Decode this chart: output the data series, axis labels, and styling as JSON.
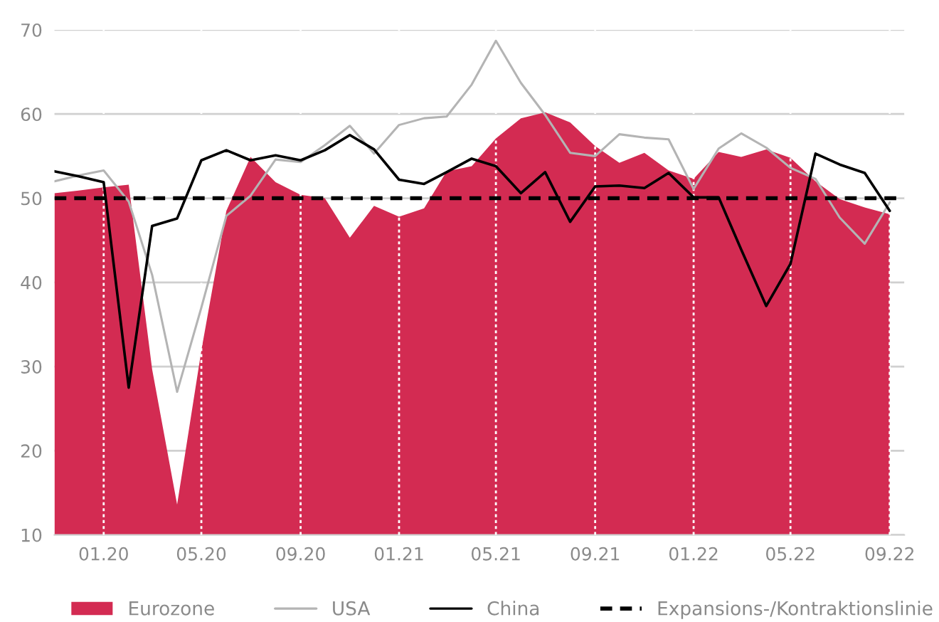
{
  "chart_data": {
    "type": "area",
    "x": [
      "2019-11",
      "2019-12",
      "2020-01",
      "2020-02",
      "2020-03",
      "2020-04",
      "2020-05",
      "2020-06",
      "2020-07",
      "2020-08",
      "2020-09",
      "2020-10",
      "2020-11",
      "2020-12",
      "2021-01",
      "2021-02",
      "2021-03",
      "2021-04",
      "2021-05",
      "2021-06",
      "2021-07",
      "2021-08",
      "2021-09",
      "2021-10",
      "2021-11",
      "2021-12",
      "2022-01",
      "2022-02",
      "2022-03",
      "2022-04",
      "2022-05",
      "2022-06",
      "2022-07",
      "2022-08",
      "2022-09"
    ],
    "series": [
      {
        "name": "Eurozone",
        "color": "#d32b52",
        "values": [
          50.6,
          50.9,
          51.3,
          51.6,
          29.7,
          13.6,
          31.9,
          48.5,
          54.9,
          51.9,
          50.4,
          50.0,
          45.3,
          49.1,
          47.8,
          48.8,
          53.2,
          53.8,
          57.1,
          59.5,
          60.2,
          59.0,
          56.2,
          54.2,
          55.4,
          53.3,
          52.3,
          55.5,
          54.9,
          55.8,
          54.8,
          52.0,
          49.9,
          48.9,
          48.1
        ]
      },
      {
        "name": "USA",
        "type": "line",
        "color": "#b4b4b4",
        "values": [
          52.0,
          52.7,
          53.3,
          49.6,
          40.9,
          27.0,
          37.0,
          47.9,
          50.3,
          54.6,
          54.3,
          56.3,
          58.6,
          55.3,
          58.7,
          59.5,
          59.7,
          63.5,
          68.7,
          63.7,
          59.9,
          55.4,
          55.0,
          57.6,
          57.2,
          57.0,
          51.1,
          55.9,
          57.7,
          56.0,
          53.6,
          52.3,
          47.7,
          44.6,
          49.5
        ]
      },
      {
        "name": "China",
        "type": "line",
        "color": "#000000",
        "values": [
          53.2,
          52.6,
          51.9,
          27.5,
          46.7,
          47.6,
          54.5,
          55.7,
          54.5,
          55.1,
          54.5,
          55.7,
          57.5,
          55.8,
          52.2,
          51.7,
          53.1,
          54.7,
          53.8,
          50.6,
          53.1,
          47.2,
          51.4,
          51.5,
          51.2,
          53.0,
          50.1,
          50.1,
          43.9,
          37.2,
          42.2,
          55.3,
          54.0,
          53.0,
          48.5
        ]
      }
    ],
    "ref_lines": [
      {
        "axis": "y",
        "value": 50,
        "label": "Expansions-/Kontraktionslinie",
        "color": "#000000",
        "line_style": "dashed"
      }
    ],
    "xlim": [
      "2019-11",
      "2022-09-19"
    ],
    "xticks": [
      {
        "value": "2020-01",
        "label": "01.20"
      },
      {
        "value": "2020-05",
        "label": "05.20"
      },
      {
        "value": "2020-09",
        "label": "09.20"
      },
      {
        "value": "2021-01",
        "label": "01.21"
      },
      {
        "value": "2021-05",
        "label": "05.21"
      },
      {
        "value": "2021-09",
        "label": "09.21"
      },
      {
        "value": "2022-01",
        "label": "01.22"
      },
      {
        "value": "2022-05",
        "label": "05.22"
      },
      {
        "value": "2022-09",
        "label": "09.22"
      }
    ],
    "ylim": [
      10,
      70
    ],
    "yticks": [
      10,
      20,
      30,
      40,
      50,
      60,
      70
    ],
    "grid": true,
    "legend": "bottom"
  }
}
